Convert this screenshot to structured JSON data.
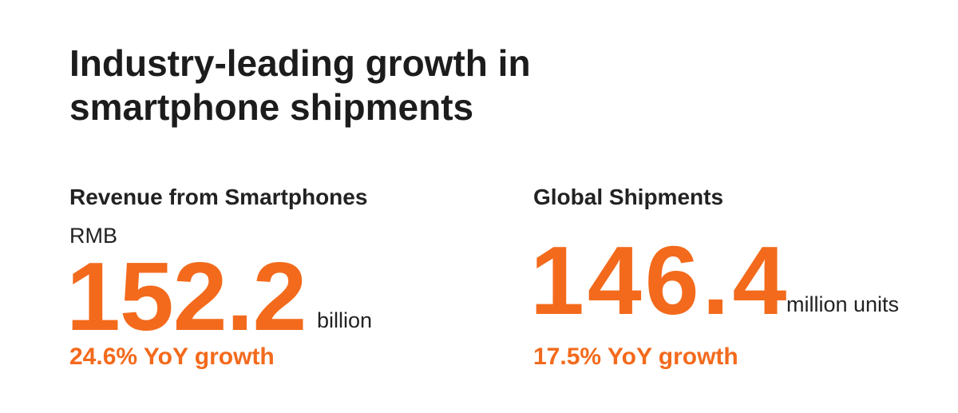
{
  "title": [
    "Industry-leading growth in",
    "smartphone shipments"
  ],
  "stats": [
    {
      "label": "Revenue from Smartphones",
      "prefix": "RMB",
      "value": "152.2",
      "unit": "billion",
      "growth": "24.6% YoY growth"
    },
    {
      "label": "Global Shipments",
      "value": "146.4",
      "unit": "million units",
      "growth": "17.5% YoY growth"
    }
  ]
}
